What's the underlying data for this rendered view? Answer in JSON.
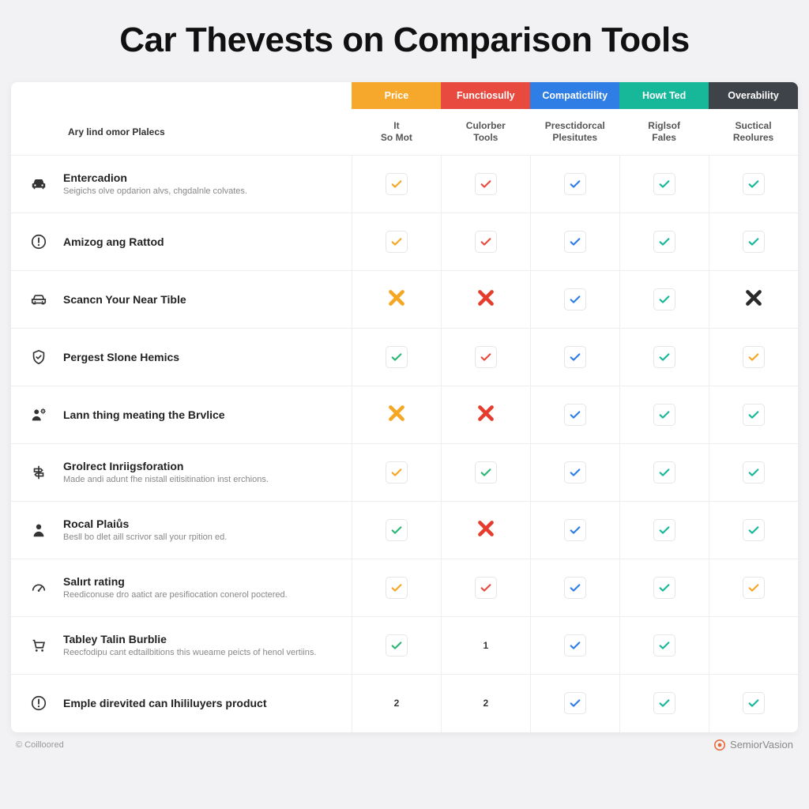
{
  "title": "Car Thevests on Comparison Tools",
  "columns": [
    {
      "group": "Price",
      "group_bg": "#f6a82c",
      "sub": "It So Mot"
    },
    {
      "group": "Functiosully",
      "group_bg": "#e84a3f",
      "sub": "Culorber Tools"
    },
    {
      "group": "Compatictility",
      "group_bg": "#2f7ee6",
      "sub": "Presctidorcal Plesitutes"
    },
    {
      "group": "Howt Ted",
      "group_bg": "#17b79a",
      "sub": "Riglsof Fales"
    },
    {
      "group": "Overability",
      "group_bg": "#3d4348",
      "sub": "Suctical Reolures"
    }
  ],
  "row_header_label": "Ary lind omor Plalecs",
  "colors": {
    "check_green": "#2bb673",
    "check_orange": "#f5a623",
    "check_red": "#e74a3d",
    "check_blue": "#2f7ee6",
    "check_teal": "#17b79a",
    "x_orange": "#f5a623",
    "x_red": "#e53c2e",
    "x_dark": "#2a2a2a"
  },
  "rows": [
    {
      "icon": "car-solid",
      "name": "Entercadion",
      "desc": "Seigichs olve opdarion alvs, chgdalnle colvates.",
      "cells": [
        {
          "t": "check",
          "c": "check_orange"
        },
        {
          "t": "check",
          "c": "check_red"
        },
        {
          "t": "check",
          "c": "check_blue"
        },
        {
          "t": "check",
          "c": "check_teal"
        },
        {
          "t": "check",
          "c": "check_teal"
        }
      ]
    },
    {
      "icon": "alert-circle",
      "name": "Amizog ang Rattod",
      "desc": "",
      "cells": [
        {
          "t": "check",
          "c": "check_orange"
        },
        {
          "t": "check",
          "c": "check_red"
        },
        {
          "t": "check",
          "c": "check_blue"
        },
        {
          "t": "check",
          "c": "check_teal"
        },
        {
          "t": "check",
          "c": "check_teal"
        }
      ]
    },
    {
      "icon": "car-outline",
      "name": "Scancn Your Near Tible",
      "desc": "",
      "cells": [
        {
          "t": "bigx",
          "c": "x_orange"
        },
        {
          "t": "bigx",
          "c": "x_red"
        },
        {
          "t": "check",
          "c": "check_blue"
        },
        {
          "t": "check",
          "c": "check_teal"
        },
        {
          "t": "bigx",
          "c": "x_dark"
        }
      ]
    },
    {
      "icon": "shield",
      "name": "Pergest Slone Hemics",
      "desc": "",
      "cells": [
        {
          "t": "check",
          "c": "check_green"
        },
        {
          "t": "check",
          "c": "check_red"
        },
        {
          "t": "check",
          "c": "check_blue"
        },
        {
          "t": "check",
          "c": "check_teal"
        },
        {
          "t": "check",
          "c": "check_orange"
        }
      ]
    },
    {
      "icon": "person-gear",
      "name": "Lann thing meating the Brvlice",
      "desc": "",
      "cells": [
        {
          "t": "bigx",
          "c": "x_orange"
        },
        {
          "t": "bigx",
          "c": "x_red"
        },
        {
          "t": "check",
          "c": "check_blue"
        },
        {
          "t": "check",
          "c": "check_teal"
        },
        {
          "t": "check",
          "c": "check_teal"
        }
      ]
    },
    {
      "icon": "signpost",
      "name": "Grolrect Inriigsforation",
      "desc": "Made andi adunt fhe nistall eitisitination inst erchions.",
      "cells": [
        {
          "t": "check",
          "c": "check_orange"
        },
        {
          "t": "check",
          "c": "check_green"
        },
        {
          "t": "check",
          "c": "check_blue"
        },
        {
          "t": "check",
          "c": "check_teal"
        },
        {
          "t": "check",
          "c": "check_teal"
        }
      ]
    },
    {
      "icon": "person",
      "name": "Rocal Plaiůs",
      "desc": "Besll bo dlet aill scrivor sall your rpition ed.",
      "cells": [
        {
          "t": "check",
          "c": "check_green"
        },
        {
          "t": "bigx",
          "c": "x_red"
        },
        {
          "t": "check",
          "c": "check_blue"
        },
        {
          "t": "check",
          "c": "check_teal"
        },
        {
          "t": "check",
          "c": "check_teal"
        }
      ]
    },
    {
      "icon": "gauge",
      "name": "Salırt rating",
      "desc": "Reediconuse dro aatict are pesifiocation conerol poctered.",
      "cells": [
        {
          "t": "check",
          "c": "check_orange"
        },
        {
          "t": "check",
          "c": "check_red"
        },
        {
          "t": "check",
          "c": "check_blue"
        },
        {
          "t": "check",
          "c": "check_teal"
        },
        {
          "t": "check",
          "c": "check_orange"
        }
      ]
    },
    {
      "icon": "cart",
      "name": "Tabley Talin Burblie",
      "desc": "Reecfodipu cant edtailbitions this wueame peicts of henol vertiins.",
      "cells": [
        {
          "t": "check",
          "c": "check_green"
        },
        {
          "t": "num",
          "v": "1"
        },
        {
          "t": "check",
          "c": "check_blue"
        },
        {
          "t": "check",
          "c": "check_teal"
        },
        {
          "t": "blank"
        }
      ]
    },
    {
      "icon": "alert-circle",
      "name": "Emple direvited can Ihililuyers product",
      "desc": "",
      "cells": [
        {
          "t": "num",
          "v": "2"
        },
        {
          "t": "num",
          "v": "2"
        },
        {
          "t": "check",
          "c": "check_blue"
        },
        {
          "t": "check",
          "c": "check_teal"
        },
        {
          "t": "check",
          "c": "check_teal"
        }
      ]
    }
  ],
  "footer_left": "© Coilloored",
  "footer_brand": "SemiorVasion"
}
